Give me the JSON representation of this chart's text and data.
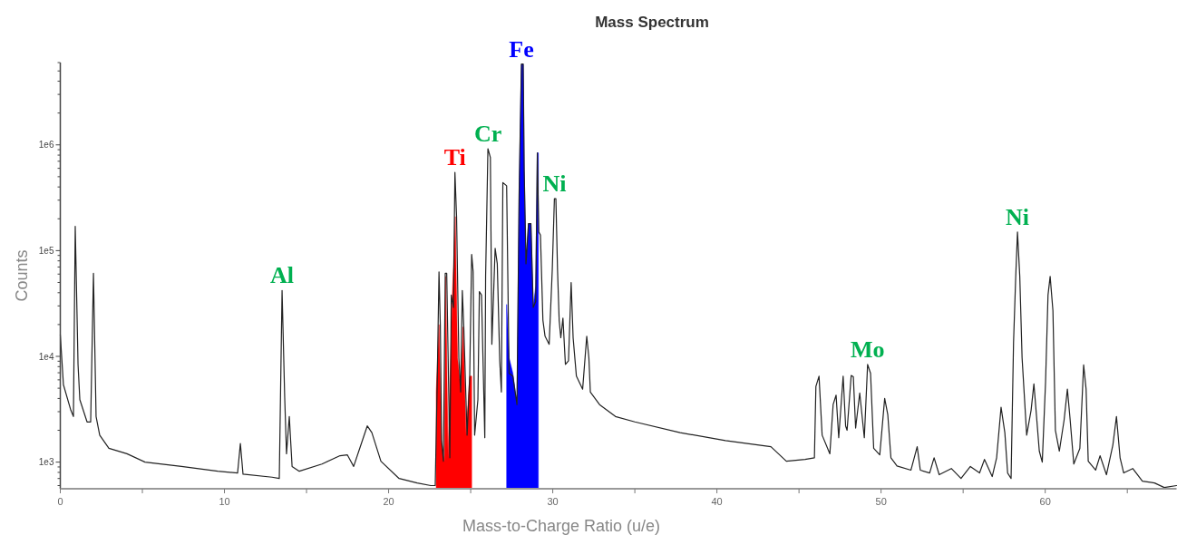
{
  "chart_data": {
    "type": "line",
    "title": "Mass Spectrum",
    "xlabel": "Mass-to-Charge Ratio (u/e)",
    "ylabel": "Counts",
    "log": "y",
    "grid": false,
    "marker": "none",
    "line_style": "solid",
    "xlim": [
      0,
      68
    ],
    "ylim": [
      560,
      6000000
    ],
    "xticks": [
      0,
      {
        "value": 5,
        "label": null
      },
      10,
      {
        "value": 15,
        "label": null
      },
      20,
      {
        "value": 25,
        "label": null
      },
      30,
      {
        "value": 35,
        "label": null
      },
      40,
      {
        "value": 45,
        "label": null
      },
      50,
      {
        "value": 55,
        "label": null
      },
      60,
      {
        "value": 65,
        "label": null
      }
    ],
    "yticks": [
      {
        "value": 600,
        "label": null
      },
      {
        "value": 700,
        "label": null
      },
      {
        "value": 800,
        "label": null
      },
      {
        "value": 900,
        "label": null
      },
      {
        "value": 1000,
        "label": "1e3"
      },
      {
        "value": 2000,
        "label": null
      },
      {
        "value": 3000,
        "label": null
      },
      {
        "value": 4000,
        "label": null
      },
      {
        "value": 5000,
        "label": null
      },
      {
        "value": 6000,
        "label": null
      },
      {
        "value": 7000,
        "label": null
      },
      {
        "value": 8000,
        "label": null
      },
      {
        "value": 9000,
        "label": null
      },
      {
        "value": 10000,
        "label": "1e4"
      },
      {
        "value": 20000,
        "label": null
      },
      {
        "value": 30000,
        "label": null
      },
      {
        "value": 40000,
        "label": null
      },
      {
        "value": 50000,
        "label": null
      },
      {
        "value": 60000,
        "label": null
      },
      {
        "value": 70000,
        "label": null
      },
      {
        "value": 80000,
        "label": null
      },
      {
        "value": 90000,
        "label": null
      },
      {
        "value": 100000,
        "label": "1e5"
      },
      {
        "value": 200000,
        "label": null
      },
      {
        "value": 300000,
        "label": null
      },
      {
        "value": 400000,
        "label": null
      },
      {
        "value": 500000,
        "label": null
      },
      {
        "value": 600000,
        "label": null
      },
      {
        "value": 700000,
        "label": null
      },
      {
        "value": 800000,
        "label": null
      },
      {
        "value": 900000,
        "label": null
      },
      {
        "value": 1000000,
        "label": "1e6"
      },
      {
        "value": 2000000,
        "label": null
      },
      {
        "value": 3000000,
        "label": null
      },
      {
        "value": 4000000,
        "label": null
      },
      {
        "value": 5000000,
        "label": null
      },
      {
        "value": 6000000,
        "label": null
      }
    ],
    "series": [
      {
        "type": "area",
        "color": "#ff0000",
        "x": [
          22.9,
          23.07,
          23.23,
          23.4,
          23.48,
          23.62,
          23.87,
          24.06,
          24.2,
          24.39,
          24.54,
          24.72,
          24.94,
          25.06
        ],
        "values": [
          4600,
          20000,
          1450,
          1020,
          57000,
          1100,
          33000,
          210000,
          9700,
          4900,
          19000,
          1800,
          6500,
          6500
        ]
      },
      {
        "type": "area",
        "color": "#0000ff",
        "x": [
          27.19,
          27.34,
          27.57,
          27.82,
          27.95,
          28.09,
          28.2,
          28.26,
          28.37,
          28.52,
          28.67,
          28.81,
          28.96,
          29.06,
          29.12
        ],
        "values": [
          31000,
          9700,
          6900,
          3500,
          340000,
          5800000,
          5800000,
          570000,
          75000,
          180000,
          180000,
          29000,
          46000,
          840000,
          840000
        ]
      },
      {
        "color": "#222222",
        "x": [
          0,
          0.19,
          0.64,
          0.8,
          0.91,
          1.08,
          1.19,
          1.63,
          1.85,
          2.02,
          2.18,
          2.4,
          2.96,
          4.06,
          5.16,
          7.38,
          9.59,
          10.8,
          10.97,
          11.13,
          12.9,
          13.34,
          13.51,
          13.67,
          13.78,
          13.95,
          14.12,
          14.56,
          15.94,
          17.04,
          17.49,
          17.87,
          18.7,
          18.98,
          19.53,
          20.64,
          21.74,
          22.57,
          22.84,
          22.95,
          23.07,
          23.15,
          23.23,
          23.34,
          23.45,
          23.54,
          23.73,
          23.82,
          23.95,
          24.04,
          24.14,
          24.28,
          24.39,
          24.49,
          24.58,
          24.78,
          24.94,
          25.06,
          25.15,
          25.24,
          25.44,
          25.53,
          25.66,
          25.77,
          25.86,
          25.91,
          26.05,
          26.2,
          26.29,
          26.49,
          26.62,
          26.77,
          26.87,
          26.96,
          27.19,
          27.34,
          27.57,
          27.82,
          27.95,
          28.09,
          28.2,
          28.26,
          28.37,
          28.52,
          28.67,
          28.81,
          28.96,
          29.06,
          29.15,
          29.25,
          29.4,
          29.53,
          29.78,
          29.97,
          30.1,
          30.19,
          30.29,
          30.39,
          30.49,
          30.62,
          30.77,
          30.96,
          31.12,
          31.24,
          31.44,
          31.82,
          32.07,
          32.2,
          32.29,
          32.85,
          33.82,
          35,
          37.76,
          40.52,
          43.29,
          44.23,
          45.37,
          45.94,
          46.03,
          46.22,
          46.41,
          46.88,
          47.08,
          47.26,
          47.42,
          47.69,
          47.84,
          47.93,
          48.18,
          48.31,
          48.45,
          48.7,
          48.98,
          49.18,
          49.36,
          49.55,
          49.92,
          50.22,
          50.41,
          50.6,
          50.97,
          51.82,
          52.2,
          52.39,
          52.96,
          53.23,
          53.54,
          54.28,
          54.87,
          55.44,
          56,
          56.3,
          56.77,
          57.04,
          57.31,
          57.54,
          57.71,
          57.92,
          58.07,
          58.2,
          58.31,
          58.45,
          58.59,
          58.87,
          59.14,
          59.31,
          59.44,
          59.64,
          59.82,
          60.02,
          60.17,
          60.3,
          60.47,
          60.62,
          60.86,
          61.15,
          61.35,
          61.52,
          61.74,
          62.11,
          62.34,
          62.49,
          62.62,
          63.07,
          63.34,
          63.73,
          64.12,
          64.34,
          64.56,
          64.78,
          65.33,
          65.92,
          66.66,
          67.25,
          68
        ],
        "values": [
          16000,
          5400,
          3100,
          2700,
          170000,
          8400,
          3900,
          2400,
          2400,
          61000,
          2700,
          1800,
          1350,
          1200,
          1000,
          910,
          820,
          790,
          1500,
          770,
          720,
          700,
          42000,
          4100,
          1200,
          2700,
          910,
          820,
          960,
          1150,
          1170,
          910,
          2200,
          1900,
          1020,
          700,
          635,
          600,
          600,
          4600,
          63000,
          20000,
          1600,
          1020,
          61000,
          61000,
          1100,
          38000,
          29000,
          550000,
          210000,
          9700,
          4600,
          42000,
          19000,
          1800,
          6500,
          92000,
          63000,
          1800,
          3900,
          41000,
          38000,
          6900,
          1700,
          57000,
          920000,
          760000,
          13000,
          105000,
          75000,
          9100,
          4600,
          440000,
          410000,
          6900,
          6500,
          3500,
          340000,
          5800000,
          5800000,
          570000,
          75000,
          180000,
          180000,
          29000,
          33000,
          840000,
          150000,
          140000,
          22000,
          15500,
          13000,
          66000,
          310000,
          310000,
          66000,
          22000,
          15000,
          23000,
          8400,
          9100,
          50000,
          15000,
          6500,
          4900,
          15500,
          9700,
          4600,
          3500,
          2700,
          2400,
          1900,
          1600,
          1400,
          1020,
          1060,
          1100,
          5200,
          6500,
          1800,
          1200,
          3500,
          4300,
          1700,
          6500,
          2200,
          2000,
          6600,
          6400,
          2100,
          4500,
          1700,
          8400,
          6900,
          1350,
          1170,
          4000,
          2800,
          1100,
          920,
          840,
          1400,
          840,
          790,
          1100,
          760,
          870,
          700,
          910,
          790,
          1060,
          730,
          1100,
          3300,
          1900,
          790,
          700,
          13500,
          55000,
          150000,
          57000,
          9700,
          1800,
          3100,
          5500,
          3100,
          1270,
          1000,
          5700,
          38000,
          57000,
          27000,
          2000,
          1270,
          2500,
          4900,
          2500,
          960,
          1350,
          8300,
          4900,
          1020,
          840,
          1150,
          760,
          1450,
          2700,
          1100,
          790,
          870,
          660,
          635,
          575,
          600
        ]
      }
    ],
    "annotations": [
      {
        "text": "Al",
        "x": 13.51,
        "y": 42000
      },
      {
        "text": "Ti",
        "x": 24.04,
        "y": 550000
      },
      {
        "text": "Cr",
        "x": 26.05,
        "y": 920000
      },
      {
        "text": "Fe",
        "x": 28.09,
        "y": 5800000
      },
      {
        "text": "Ni",
        "x": 30.1,
        "y": 310000
      },
      {
        "text": "Mo",
        "x": 49.18,
        "y": 8400
      },
      {
        "text": "Ni",
        "x": 58.31,
        "y": 150000
      }
    ]
  }
}
